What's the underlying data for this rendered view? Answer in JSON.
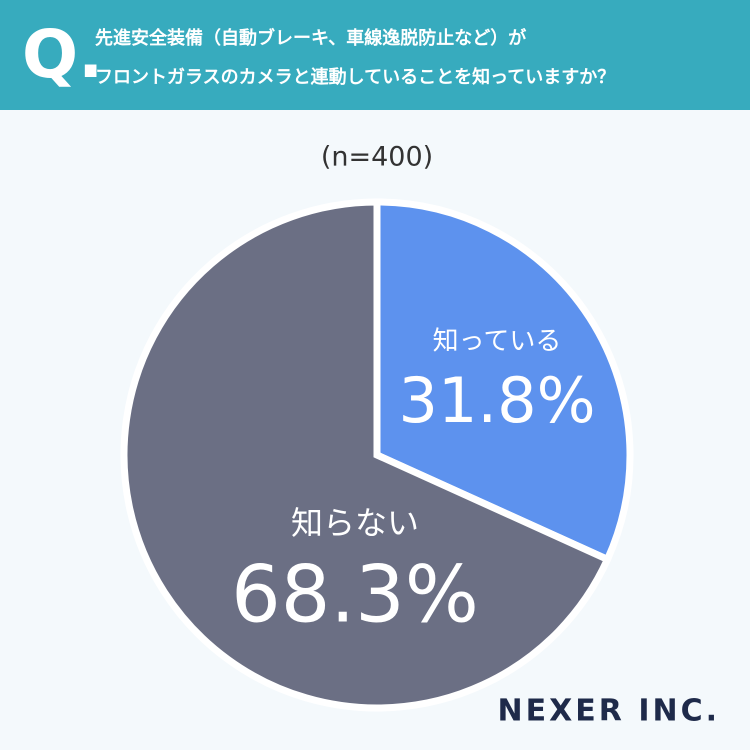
{
  "chart_data": {
    "type": "pie",
    "question_marker": "Q.",
    "title": [
      "先進安全装備（自動ブレーキ、車線逸脱防止など）が",
      "フロントガラスのカメラと連動していることを知っていますか？"
    ],
    "subtitle": "(n=400)",
    "categories": [
      "知っている",
      "知らない"
    ],
    "values": [
      31.8,
      68.3
    ],
    "value_labels": [
      "31.8%",
      "68.3%"
    ],
    "colors": [
      "#5d92ee",
      "#6b6f84"
    ],
    "brand": "NEXER INC."
  }
}
